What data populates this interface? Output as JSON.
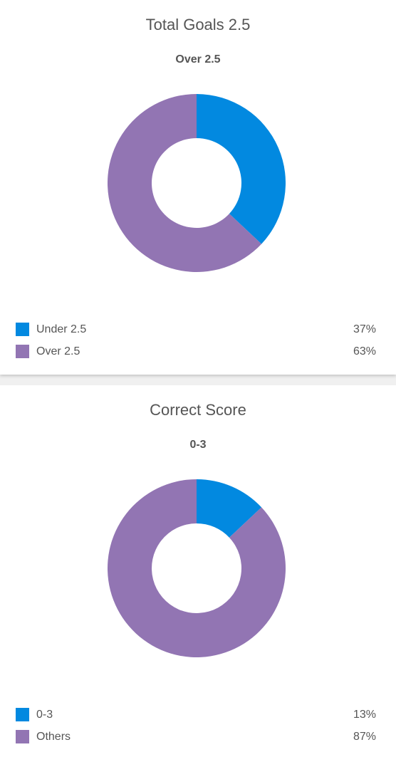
{
  "colors": {
    "blue": "#0289e0",
    "purple": "#9275b3"
  },
  "chart_data": [
    {
      "type": "pie",
      "title": "Total Goals 2.5",
      "subtitle": "Over 2.5",
      "categories": [
        "Under 2.5",
        "Over 2.5"
      ],
      "values": [
        37,
        63
      ],
      "value_labels": [
        "37%",
        "63%"
      ],
      "colors": [
        "#0289e0",
        "#9275b3"
      ],
      "legend": "bottom"
    },
    {
      "type": "pie",
      "title": "Correct Score",
      "subtitle": "0-3",
      "categories": [
        "0-3",
        "Others"
      ],
      "values": [
        13,
        87
      ],
      "value_labels": [
        "13%",
        "87%"
      ],
      "colors": [
        "#0289e0",
        "#9275b3"
      ],
      "legend": "bottom"
    }
  ]
}
